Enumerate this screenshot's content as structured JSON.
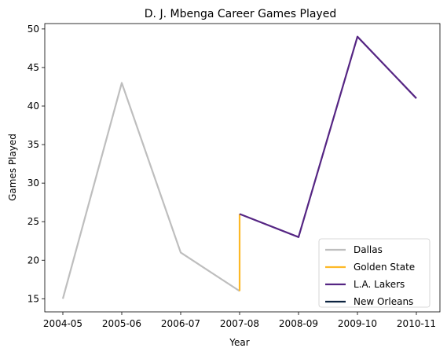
{
  "chart_data": {
    "type": "line",
    "title": "D. J. Mbenga Career Games Played",
    "xlabel": "Year",
    "ylabel": "Games Played",
    "categories": [
      "2004-05",
      "2005-06",
      "2006-07",
      "2007-08",
      "2008-09",
      "2009-10",
      "2010-11"
    ],
    "yticks": [
      15,
      20,
      25,
      30,
      35,
      40,
      45,
      50
    ],
    "ylim": [
      13.3,
      50.7
    ],
    "grid": false,
    "legend_position": "lower-right",
    "series": [
      {
        "name": "Dallas",
        "color": "#bebebe",
        "points": [
          {
            "x": "2004-05",
            "y": 15
          },
          {
            "x": "2005-06",
            "y": 43
          },
          {
            "x": "2006-07",
            "y": 21
          },
          {
            "x": "2007-08",
            "y": 16
          }
        ]
      },
      {
        "name": "Golden State",
        "color": "#fdb927",
        "points": [
          {
            "x": "2007-08",
            "y": 16
          },
          {
            "x": "2007-08",
            "y": 26
          }
        ]
      },
      {
        "name": "L.A. Lakers",
        "color": "#552583",
        "points": [
          {
            "x": "2007-08",
            "y": 26
          },
          {
            "x": "2008-09",
            "y": 23
          },
          {
            "x": "2009-10",
            "y": 49
          },
          {
            "x": "2010-11",
            "y": 41
          }
        ]
      },
      {
        "name": "New Orleans",
        "color": "#0c2340",
        "points": []
      }
    ]
  }
}
